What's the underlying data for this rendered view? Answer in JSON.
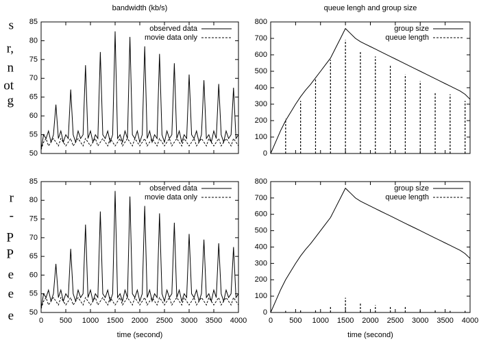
{
  "margin_text": [
    "s",
    "r,",
    "n",
    "ot",
    "g",
    "r",
    "-",
    "P",
    "P",
    "e",
    "e",
    "e"
  ],
  "chart_data": [
    {
      "type": "line",
      "title": "bandwidth (kb/s)",
      "legend": "upper right",
      "xlim": [
        0,
        4000
      ],
      "xticks": [
        0,
        500,
        1000,
        1500,
        2000,
        2500,
        3000,
        3500,
        4000
      ],
      "show_xtick_labels": false,
      "ylim": [
        50,
        85
      ],
      "yticks": [
        50,
        55,
        60,
        65,
        70,
        75,
        80,
        85
      ],
      "series": [
        {
          "name": "observed data",
          "style": "solid",
          "color": "#000000",
          "x": [
            0,
            50,
            100,
            150,
            200,
            250,
            300,
            350,
            400,
            450,
            500,
            550,
            600,
            650,
            700,
            750,
            800,
            850,
            900,
            950,
            1000,
            1050,
            1100,
            1150,
            1200,
            1250,
            1300,
            1350,
            1400,
            1450,
            1500,
            1550,
            1600,
            1650,
            1700,
            1750,
            1800,
            1850,
            1900,
            1950,
            2000,
            2050,
            2100,
            2150,
            2200,
            2250,
            2300,
            2350,
            2400,
            2450,
            2500,
            2550,
            2600,
            2650,
            2700,
            2750,
            2800,
            2850,
            2900,
            2950,
            3000,
            3050,
            3100,
            3150,
            3200,
            3250,
            3300,
            3350,
            3400,
            3450,
            3500,
            3550,
            3600,
            3650,
            3700,
            3750,
            3800,
            3850,
            3900,
            3950,
            4000
          ],
          "values": [
            51,
            55,
            54,
            56,
            53,
            55,
            63,
            54,
            56,
            53,
            55,
            54,
            67,
            55,
            53,
            56,
            54,
            55,
            73.5,
            54,
            56,
            53,
            55,
            54,
            77,
            55,
            54,
            56,
            53,
            55,
            82.5,
            54,
            55,
            53,
            56,
            54,
            81,
            55,
            54,
            56,
            53,
            55,
            78.5,
            54,
            56,
            53,
            55,
            54,
            76.5,
            55,
            53,
            56,
            54,
            55,
            74,
            54,
            56,
            53,
            55,
            54,
            71,
            55,
            54,
            56,
            53,
            55,
            69.5,
            54,
            55,
            53,
            56,
            54,
            68.5,
            55,
            53,
            56,
            54,
            55,
            67.5,
            54,
            55
          ]
        },
        {
          "name": "movie data only",
          "style": "dashed",
          "color": "#000000",
          "x": [
            0,
            50,
            100,
            150,
            200,
            250,
            300,
            350,
            400,
            450,
            500,
            550,
            600,
            650,
            700,
            750,
            800,
            850,
            900,
            950,
            1000,
            1050,
            1100,
            1150,
            1200,
            1250,
            1300,
            1350,
            1400,
            1450,
            1500,
            1550,
            1600,
            1650,
            1700,
            1750,
            1800,
            1850,
            1900,
            1950,
            2000,
            2050,
            2100,
            2150,
            2200,
            2250,
            2300,
            2350,
            2400,
            2450,
            2500,
            2550,
            2600,
            2650,
            2700,
            2750,
            2800,
            2850,
            2900,
            2950,
            3000,
            3050,
            3100,
            3150,
            3200,
            3250,
            3300,
            3350,
            3400,
            3450,
            3500,
            3550,
            3600,
            3650,
            3700,
            3750,
            3800,
            3850,
            3900,
            3950,
            4000
          ],
          "values": [
            51,
            53,
            54,
            52,
            53,
            54,
            53,
            52,
            54,
            53,
            52,
            53,
            54,
            52,
            53,
            54,
            53,
            52,
            54,
            53,
            52,
            53,
            54,
            52,
            53,
            54,
            53,
            52,
            54,
            53,
            52,
            53,
            54,
            52,
            53,
            54,
            53,
            52,
            54,
            53,
            52,
            53,
            54,
            52,
            53,
            54,
            53,
            52,
            54,
            53,
            52,
            53,
            54,
            52,
            53,
            54,
            53,
            52,
            54,
            53,
            52,
            53,
            54,
            52,
            53,
            54,
            53,
            52,
            54,
            53,
            52,
            53,
            54,
            52,
            53,
            54,
            53,
            52,
            54,
            53,
            52
          ]
        }
      ]
    },
    {
      "type": "line",
      "title": "queue lengh and group size",
      "legend": "upper right",
      "xlim": [
        0,
        4000
      ],
      "xticks": [
        0,
        500,
        1000,
        1500,
        2000,
        2500,
        3000,
        3500,
        4000
      ],
      "show_xtick_labels": false,
      "ylim": [
        0,
        800
      ],
      "yticks": [
        0,
        100,
        200,
        300,
        400,
        500,
        600,
        700,
        800
      ],
      "series": [
        {
          "name": "group size",
          "style": "solid",
          "color": "#000000",
          "x": [
            0,
            100,
            200,
            300,
            400,
            500,
            600,
            700,
            800,
            900,
            1000,
            1100,
            1200,
            1300,
            1400,
            1500,
            1600,
            1700,
            1800,
            1900,
            2000,
            2100,
            2200,
            2300,
            2400,
            2500,
            2600,
            2700,
            2800,
            2900,
            3000,
            3100,
            3200,
            3300,
            3400,
            3500,
            3600,
            3700,
            3800,
            3900,
            4000
          ],
          "values": [
            0,
            70,
            140,
            200,
            250,
            300,
            345,
            385,
            420,
            460,
            500,
            540,
            580,
            640,
            700,
            760,
            730,
            700,
            680,
            665,
            650,
            635,
            620,
            605,
            590,
            575,
            560,
            545,
            530,
            515,
            500,
            485,
            470,
            455,
            440,
            425,
            410,
            395,
            380,
            360,
            330
          ]
        },
        {
          "name": "queue length",
          "style": "dashed-impulse",
          "color": "#000000",
          "x": [
            300,
            600,
            900,
            1200,
            1500,
            1800,
            2100,
            2400,
            2700,
            3000,
            3300,
            3600,
            3900
          ],
          "values": [
            210,
            320,
            460,
            570,
            690,
            620,
            590,
            540,
            480,
            440,
            370,
            360,
            320
          ]
        }
      ]
    },
    {
      "type": "line",
      "xlabel": "time (second)",
      "legend": "upper right",
      "xlim": [
        0,
        4000
      ],
      "xticks": [
        0,
        500,
        1000,
        1500,
        2000,
        2500,
        3000,
        3500,
        4000
      ],
      "show_xtick_labels": true,
      "ylim": [
        50,
        85
      ],
      "yticks": [
        50,
        55,
        60,
        65,
        70,
        75,
        80,
        85
      ],
      "series": [
        {
          "name": "observed data",
          "style": "solid",
          "color": "#000000",
          "x": [
            0,
            50,
            100,
            150,
            200,
            250,
            300,
            350,
            400,
            450,
            500,
            550,
            600,
            650,
            700,
            750,
            800,
            850,
            900,
            950,
            1000,
            1050,
            1100,
            1150,
            1200,
            1250,
            1300,
            1350,
            1400,
            1450,
            1500,
            1550,
            1600,
            1650,
            1700,
            1750,
            1800,
            1850,
            1900,
            1950,
            2000,
            2050,
            2100,
            2150,
            2200,
            2250,
            2300,
            2350,
            2400,
            2450,
            2500,
            2550,
            2600,
            2650,
            2700,
            2750,
            2800,
            2850,
            2900,
            2950,
            3000,
            3050,
            3100,
            3150,
            3200,
            3250,
            3300,
            3350,
            3400,
            3450,
            3500,
            3550,
            3600,
            3650,
            3700,
            3750,
            3800,
            3850,
            3900,
            3950,
            4000
          ],
          "values": [
            51,
            55,
            54,
            56,
            53,
            55,
            63,
            54,
            56,
            53,
            55,
            54,
            67,
            55,
            53,
            56,
            54,
            55,
            73.5,
            54,
            56,
            53,
            55,
            54,
            77,
            55,
            54,
            56,
            53,
            55,
            82.5,
            54,
            55,
            53,
            56,
            54,
            81,
            55,
            54,
            56,
            53,
            55,
            78.5,
            54,
            56,
            53,
            55,
            54,
            76.5,
            55,
            53,
            56,
            54,
            55,
            74,
            54,
            56,
            53,
            55,
            54,
            71,
            55,
            54,
            56,
            53,
            55,
            69.5,
            54,
            55,
            53,
            56,
            54,
            68.5,
            55,
            53,
            56,
            54,
            55,
            67.5,
            54,
            55
          ]
        },
        {
          "name": "movie data only",
          "style": "dashed",
          "color": "#000000",
          "x": [
            0,
            50,
            100,
            150,
            200,
            250,
            300,
            350,
            400,
            450,
            500,
            550,
            600,
            650,
            700,
            750,
            800,
            850,
            900,
            950,
            1000,
            1050,
            1100,
            1150,
            1200,
            1250,
            1300,
            1350,
            1400,
            1450,
            1500,
            1550,
            1600,
            1650,
            1700,
            1750,
            1800,
            1850,
            1900,
            1950,
            2000,
            2050,
            2100,
            2150,
            2200,
            2250,
            2300,
            2350,
            2400,
            2450,
            2500,
            2550,
            2600,
            2650,
            2700,
            2750,
            2800,
            2850,
            2900,
            2950,
            3000,
            3050,
            3100,
            3150,
            3200,
            3250,
            3300,
            3350,
            3400,
            3450,
            3500,
            3550,
            3600,
            3650,
            3700,
            3750,
            3800,
            3850,
            3900,
            3950,
            4000
          ],
          "values": [
            51,
            53,
            54,
            52,
            53,
            54,
            53,
            52,
            54,
            53,
            52,
            53,
            54,
            52,
            53,
            54,
            53,
            52,
            54,
            53,
            52,
            53,
            54,
            52,
            53,
            54,
            53,
            52,
            54,
            53,
            52,
            53,
            54,
            52,
            53,
            54,
            53,
            52,
            54,
            53,
            52,
            53,
            54,
            52,
            53,
            54,
            53,
            52,
            54,
            53,
            52,
            53,
            54,
            52,
            53,
            54,
            53,
            52,
            54,
            53,
            52,
            53,
            54,
            52,
            53,
            54,
            53,
            52,
            54,
            53,
            52,
            53,
            54,
            52,
            53,
            54,
            53,
            52,
            54,
            53,
            52
          ]
        }
      ]
    },
    {
      "type": "line",
      "xlabel": "time (second)",
      "legend": "upper right",
      "xlim": [
        0,
        4000
      ],
      "xticks": [
        0,
        500,
        1000,
        1500,
        2000,
        2500,
        3000,
        3500,
        4000
      ],
      "show_xtick_labels": true,
      "ylim": [
        0,
        800
      ],
      "yticks": [
        0,
        100,
        200,
        300,
        400,
        500,
        600,
        700,
        800
      ],
      "series": [
        {
          "name": "group size",
          "style": "solid",
          "color": "#000000",
          "x": [
            0,
            100,
            200,
            300,
            400,
            500,
            600,
            700,
            800,
            900,
            1000,
            1100,
            1200,
            1300,
            1400,
            1500,
            1600,
            1700,
            1800,
            1900,
            2000,
            2100,
            2200,
            2300,
            2400,
            2500,
            2600,
            2700,
            2800,
            2900,
            3000,
            3100,
            3200,
            3300,
            3400,
            3500,
            3600,
            3700,
            3800,
            3900,
            4000
          ],
          "values": [
            0,
            70,
            140,
            200,
            250,
            300,
            345,
            385,
            420,
            460,
            500,
            540,
            580,
            640,
            700,
            760,
            730,
            700,
            680,
            665,
            650,
            635,
            620,
            605,
            590,
            575,
            560,
            545,
            530,
            515,
            500,
            485,
            470,
            455,
            440,
            425,
            410,
            395,
            380,
            360,
            330
          ]
        },
        {
          "name": "queue length",
          "style": "dashed-impulse",
          "color": "#000000",
          "x": [
            300,
            600,
            900,
            1200,
            1500,
            1800,
            2100,
            2400,
            2700,
            3000,
            3300,
            3600,
            3900
          ],
          "values": [
            10,
            15,
            20,
            40,
            90,
            60,
            45,
            40,
            35,
            20,
            15,
            10,
            10
          ]
        }
      ]
    }
  ]
}
